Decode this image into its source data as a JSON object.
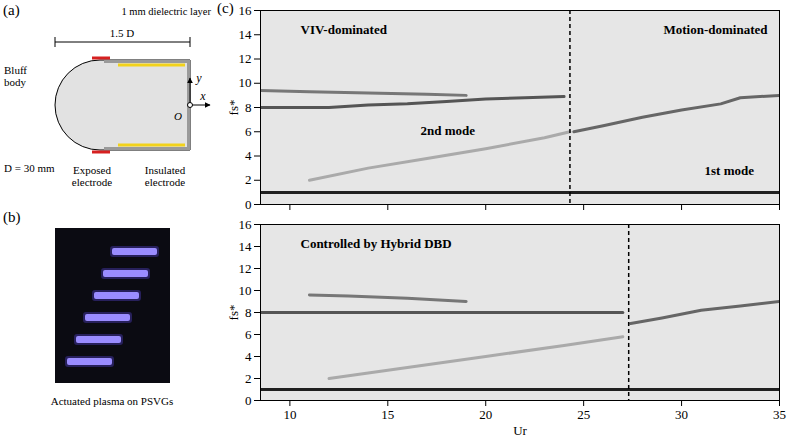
{
  "panel_a": {
    "label": "(a)",
    "texts": {
      "dielectric": "1 mm dielectric layer",
      "width": "1.5 D",
      "body": "Bluff body",
      "diameter": "D = 30 mm",
      "exposed": "Exposed electrode",
      "insulated": "Insulated electrode",
      "origin": "O",
      "x_axis": "x",
      "y_axis": "y"
    }
  },
  "panel_b": {
    "label": "(b)",
    "caption": "Actuated plasma on PSVGs"
  },
  "panel_c_label": "(c)",
  "chart_data": [
    {
      "type": "line",
      "ylabel": "fs*",
      "xlim": [
        8.5,
        35
      ],
      "ylim": [
        0,
        16
      ],
      "xticks": [
        10,
        15,
        20,
        25,
        30,
        35
      ],
      "yticks": [
        0,
        2,
        4,
        6,
        8,
        10,
        12,
        14,
        16
      ],
      "tick_labels": "y",
      "divider": 24.3,
      "annotations": [
        "VIV-dominated",
        "Motion-dominated",
        "2nd mode",
        "1st mode"
      ],
      "series": [
        {
          "color": "#202020",
          "x": [
            8.5,
            12,
            16,
            20,
            24,
            28,
            32,
            35
          ],
          "values": [
            1,
            1,
            1,
            1,
            1,
            1,
            1,
            1
          ]
        },
        {
          "color": "#555555",
          "x": [
            8.5,
            10,
            12,
            14,
            16,
            18,
            20,
            22,
            24
          ],
          "values": [
            8,
            8,
            8,
            8.2,
            8.3,
            8.5,
            8.7,
            8.8,
            8.9
          ]
        },
        {
          "color": "#777777",
          "x": [
            8.5,
            11,
            14,
            17,
            19
          ],
          "values": [
            9.4,
            9.3,
            9.2,
            9.1,
            9
          ]
        },
        {
          "color": "#666666",
          "x": [
            24.5,
            26,
            28,
            30,
            32,
            33,
            35
          ],
          "values": [
            6,
            6.5,
            7.2,
            7.8,
            8.3,
            8.8,
            9
          ]
        },
        {
          "color": "#aaaaaa",
          "x": [
            11,
            14,
            17,
            20,
            23,
            24.3
          ],
          "values": [
            2,
            3,
            3.8,
            4.6,
            5.5,
            6
          ]
        }
      ]
    },
    {
      "type": "line",
      "xlabel": "Ur",
      "ylabel": "fs*",
      "xlim": [
        8.5,
        35
      ],
      "ylim": [
        0,
        16
      ],
      "xticks": [
        10,
        15,
        20,
        25,
        30,
        35
      ],
      "yticks": [
        0,
        2,
        4,
        6,
        8,
        10,
        12,
        14,
        16
      ],
      "divider": 27.3,
      "annotations": [
        "Controlled by Hybrid DBD"
      ],
      "series": [
        {
          "color": "#202020",
          "x": [
            8.5,
            12,
            16,
            20,
            24,
            28,
            32,
            35
          ],
          "values": [
            1,
            1,
            1,
            1,
            1,
            1,
            1,
            1
          ]
        },
        {
          "color": "#555555",
          "x": [
            8.5,
            10,
            12,
            15,
            18,
            21,
            24,
            27
          ],
          "values": [
            8,
            8,
            8,
            8,
            8,
            8,
            8,
            8
          ]
        },
        {
          "color": "#777777",
          "x": [
            11,
            13,
            16,
            19
          ],
          "values": [
            9.6,
            9.5,
            9.3,
            9
          ]
        },
        {
          "color": "#666666",
          "x": [
            27.4,
            29,
            31,
            33,
            35
          ],
          "values": [
            7,
            7.5,
            8.2,
            8.6,
            9
          ]
        },
        {
          "color": "#aaaaaa",
          "x": [
            12,
            16,
            20,
            24,
            27
          ],
          "values": [
            2,
            3,
            4,
            5,
            5.8
          ]
        }
      ]
    }
  ]
}
